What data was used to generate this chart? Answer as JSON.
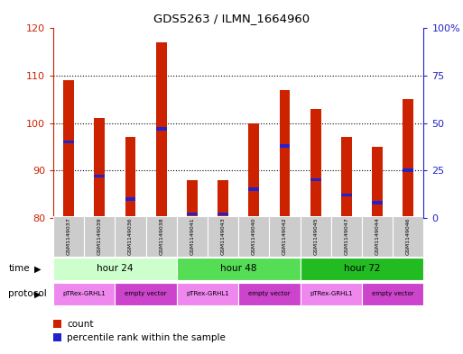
{
  "title": "GDS5263 / ILMN_1664960",
  "samples": [
    "GSM1149037",
    "GSM1149039",
    "GSM1149036",
    "GSM1149038",
    "GSM1149041",
    "GSM1149043",
    "GSM1149040",
    "GSM1149042",
    "GSM1149045",
    "GSM1149047",
    "GSM1149044",
    "GSM1149046"
  ],
  "count_values": [
    109,
    101,
    97,
    117,
    88,
    88,
    100,
    107,
    103,
    97,
    95,
    105
  ],
  "percentile_values": [
    40,
    22,
    10,
    47,
    2,
    2,
    15,
    38,
    20,
    12,
    8,
    25
  ],
  "ylim_left": [
    80,
    120
  ],
  "ylim_right": [
    0,
    100
  ],
  "yticks_left": [
    80,
    90,
    100,
    110,
    120
  ],
  "yticks_right": [
    0,
    25,
    50,
    75,
    100
  ],
  "ytick_labels_right": [
    "0",
    "25",
    "50",
    "75",
    "100%"
  ],
  "bar_color": "#cc2200",
  "percentile_color": "#2222cc",
  "background_color": "#ffffff",
  "left_axis_color": "#cc2200",
  "right_axis_color": "#2222cc",
  "bar_width": 0.35,
  "sample_bg_color": "#cccccc",
  "hour24_color": "#ccffcc",
  "hour48_color": "#55dd55",
  "hour72_color": "#22bb22",
  "proto_color1": "#ee88ee",
  "proto_color2": "#cc44cc",
  "time_groups": [
    {
      "label": "hour 24",
      "start": 0,
      "end": 4
    },
    {
      "label": "hour 48",
      "start": 4,
      "end": 8
    },
    {
      "label": "hour 72",
      "start": 8,
      "end": 12
    }
  ],
  "protocol_groups": [
    {
      "label": "pTRex-GRHL1",
      "start": 0,
      "end": 2
    },
    {
      "label": "empty vector",
      "start": 2,
      "end": 4
    },
    {
      "label": "pTRex-GRHL1",
      "start": 4,
      "end": 6
    },
    {
      "label": "empty vector",
      "start": 6,
      "end": 8
    },
    {
      "label": "pTRex-GRHL1",
      "start": 8,
      "end": 10
    },
    {
      "label": "empty vector",
      "start": 10,
      "end": 12
    }
  ]
}
